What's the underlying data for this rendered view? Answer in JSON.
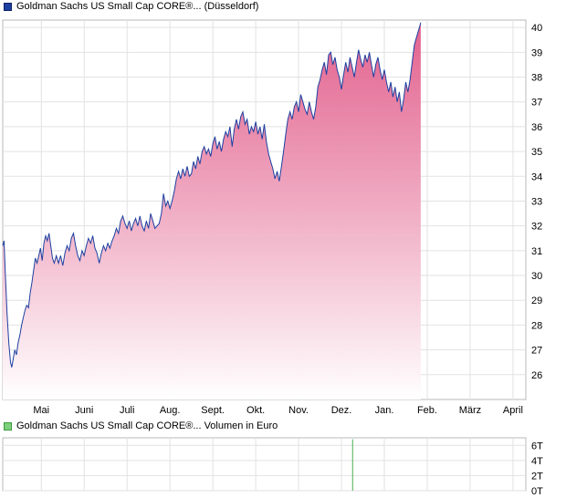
{
  "chart_data": [
    {
      "type": "area",
      "legend": "Goldman Sachs US Small Cap CORE®... (Düsseldorf)",
      "color": "#1d3fa0",
      "fill_top": "#e05585",
      "fill_bottom": "#ffffff",
      "x_tick_labels": [
        "Mai",
        "Juni",
        "Juli",
        "Aug.",
        "Sept.",
        "Okt.",
        "Nov.",
        "Dez.",
        "Jan.",
        "Feb.",
        "März",
        "April"
      ],
      "x_tick_months": [
        1,
        2,
        3,
        4,
        5,
        6,
        7,
        8,
        9,
        10,
        11,
        12
      ],
      "xlim": [
        0.1,
        12.3
      ],
      "ylim": [
        25.0,
        40.3
      ],
      "y_tick_labels": [
        "26",
        "27",
        "28",
        "29",
        "30",
        "31",
        "32",
        "33",
        "34",
        "35",
        "36",
        "37",
        "38",
        "39",
        "40"
      ],
      "y_ticks": [
        26,
        27,
        28,
        29,
        30,
        31,
        32,
        33,
        34,
        35,
        36,
        37,
        38,
        39,
        40
      ],
      "grid": true,
      "points": [
        [
          0.1,
          31.2
        ],
        [
          0.13,
          31.4
        ],
        [
          0.16,
          30.1
        ],
        [
          0.2,
          28.5
        ],
        [
          0.24,
          27.3
        ],
        [
          0.28,
          26.5
        ],
        [
          0.31,
          26.3
        ],
        [
          0.34,
          26.6
        ],
        [
          0.38,
          27.0
        ],
        [
          0.42,
          26.8
        ],
        [
          0.46,
          27.3
        ],
        [
          0.5,
          27.6
        ],
        [
          0.54,
          28.0
        ],
        [
          0.58,
          28.3
        ],
        [
          0.62,
          28.6
        ],
        [
          0.66,
          28.8
        ],
        [
          0.7,
          28.7
        ],
        [
          0.74,
          29.3
        ],
        [
          0.78,
          29.7
        ],
        [
          0.82,
          30.2
        ],
        [
          0.86,
          30.7
        ],
        [
          0.9,
          30.5
        ],
        [
          0.94,
          30.8
        ],
        [
          0.98,
          31.1
        ],
        [
          1.02,
          30.6
        ],
        [
          1.06,
          31.3
        ],
        [
          1.1,
          31.6
        ],
        [
          1.14,
          31.4
        ],
        [
          1.18,
          31.7
        ],
        [
          1.22,
          31.2
        ],
        [
          1.26,
          30.7
        ],
        [
          1.3,
          30.5
        ],
        [
          1.35,
          30.8
        ],
        [
          1.4,
          30.5
        ],
        [
          1.45,
          30.8
        ],
        [
          1.5,
          30.4
        ],
        [
          1.55,
          30.9
        ],
        [
          1.6,
          31.2
        ],
        [
          1.65,
          31.0
        ],
        [
          1.7,
          31.5
        ],
        [
          1.75,
          31.7
        ],
        [
          1.8,
          31.2
        ],
        [
          1.85,
          30.8
        ],
        [
          1.9,
          30.6
        ],
        [
          1.95,
          31.0
        ],
        [
          2.0,
          30.8
        ],
        [
          2.05,
          31.2
        ],
        [
          2.1,
          31.5
        ],
        [
          2.15,
          31.3
        ],
        [
          2.2,
          31.6
        ],
        [
          2.25,
          31.1
        ],
        [
          2.3,
          30.9
        ],
        [
          2.35,
          30.5
        ],
        [
          2.4,
          30.9
        ],
        [
          2.45,
          31.2
        ],
        [
          2.5,
          31.0
        ],
        [
          2.55,
          31.3
        ],
        [
          2.6,
          31.1
        ],
        [
          2.65,
          31.4
        ],
        [
          2.7,
          31.6
        ],
        [
          2.75,
          31.9
        ],
        [
          2.8,
          31.7
        ],
        [
          2.85,
          32.2
        ],
        [
          2.9,
          32.4
        ],
        [
          2.95,
          32.1
        ],
        [
          3.0,
          31.9
        ],
        [
          3.05,
          32.2
        ],
        [
          3.1,
          31.8
        ],
        [
          3.15,
          32.1
        ],
        [
          3.2,
          32.3
        ],
        [
          3.25,
          32.0
        ],
        [
          3.3,
          32.4
        ],
        [
          3.35,
          32.0
        ],
        [
          3.4,
          31.8
        ],
        [
          3.45,
          32.2
        ],
        [
          3.5,
          31.9
        ],
        [
          3.55,
          32.5
        ],
        [
          3.6,
          32.2
        ],
        [
          3.65,
          31.9
        ],
        [
          3.7,
          32.0
        ],
        [
          3.75,
          32.1
        ],
        [
          3.8,
          32.5
        ],
        [
          3.85,
          33.3
        ],
        [
          3.9,
          32.8
        ],
        [
          3.95,
          33.0
        ],
        [
          4.0,
          32.7
        ],
        [
          4.05,
          33.0
        ],
        [
          4.1,
          33.4
        ],
        [
          4.15,
          33.9
        ],
        [
          4.2,
          34.2
        ],
        [
          4.25,
          33.9
        ],
        [
          4.3,
          34.3
        ],
        [
          4.35,
          34.0
        ],
        [
          4.4,
          34.4
        ],
        [
          4.45,
          34.0
        ],
        [
          4.5,
          34.1
        ],
        [
          4.55,
          34.6
        ],
        [
          4.6,
          34.3
        ],
        [
          4.65,
          34.8
        ],
        [
          4.7,
          34.5
        ],
        [
          4.75,
          35.0
        ],
        [
          4.8,
          35.2
        ],
        [
          4.85,
          34.9
        ],
        [
          4.9,
          35.1
        ],
        [
          4.95,
          34.8
        ],
        [
          5.0,
          35.3
        ],
        [
          5.05,
          35.6
        ],
        [
          5.1,
          35.1
        ],
        [
          5.15,
          35.4
        ],
        [
          5.2,
          35.0
        ],
        [
          5.25,
          35.5
        ],
        [
          5.3,
          35.8
        ],
        [
          5.35,
          35.6
        ],
        [
          5.4,
          36.0
        ],
        [
          5.45,
          35.2
        ],
        [
          5.5,
          35.9
        ],
        [
          5.55,
          36.3
        ],
        [
          5.6,
          35.9
        ],
        [
          5.65,
          36.4
        ],
        [
          5.7,
          36.6
        ],
        [
          5.75,
          36.1
        ],
        [
          5.8,
          36.3
        ],
        [
          5.85,
          35.7
        ],
        [
          5.9,
          36.0
        ],
        [
          5.95,
          35.8
        ],
        [
          6.0,
          36.2
        ],
        [
          6.05,
          35.7
        ],
        [
          6.1,
          36.0
        ],
        [
          6.15,
          35.5
        ],
        [
          6.2,
          36.1
        ],
        [
          6.25,
          35.4
        ],
        [
          6.3,
          34.9
        ],
        [
          6.35,
          34.6
        ],
        [
          6.4,
          34.3
        ],
        [
          6.45,
          33.9
        ],
        [
          6.5,
          34.2
        ],
        [
          6.55,
          33.8
        ],
        [
          6.6,
          34.4
        ],
        [
          6.65,
          35.0
        ],
        [
          6.7,
          35.7
        ],
        [
          6.75,
          36.3
        ],
        [
          6.8,
          36.6
        ],
        [
          6.85,
          36.3
        ],
        [
          6.9,
          36.8
        ],
        [
          6.95,
          37.0
        ],
        [
          7.0,
          36.6
        ],
        [
          7.05,
          37.3
        ],
        [
          7.1,
          37.0
        ],
        [
          7.15,
          36.7
        ],
        [
          7.2,
          36.5
        ],
        [
          7.25,
          37.0
        ],
        [
          7.3,
          36.6
        ],
        [
          7.35,
          36.3
        ],
        [
          7.4,
          36.8
        ],
        [
          7.45,
          37.6
        ],
        [
          7.5,
          37.9
        ],
        [
          7.55,
          38.3
        ],
        [
          7.6,
          38.6
        ],
        [
          7.65,
          38.1
        ],
        [
          7.7,
          38.9
        ],
        [
          7.75,
          39.0
        ],
        [
          7.8,
          38.5
        ],
        [
          7.85,
          38.8
        ],
        [
          7.9,
          38.3
        ],
        [
          7.95,
          38.0
        ],
        [
          8.0,
          37.5
        ],
        [
          8.05,
          38.1
        ],
        [
          8.1,
          38.6
        ],
        [
          8.15,
          38.2
        ],
        [
          8.2,
          38.8
        ],
        [
          8.25,
          38.4
        ],
        [
          8.3,
          38.0
        ],
        [
          8.35,
          38.6
        ],
        [
          8.4,
          39.1
        ],
        [
          8.45,
          38.7
        ],
        [
          8.5,
          38.4
        ],
        [
          8.55,
          38.9
        ],
        [
          8.6,
          38.6
        ],
        [
          8.65,
          39.0
        ],
        [
          8.7,
          38.5
        ],
        [
          8.75,
          38.0
        ],
        [
          8.8,
          38.5
        ],
        [
          8.85,
          38.8
        ],
        [
          8.9,
          38.3
        ],
        [
          8.95,
          37.9
        ],
        [
          9.0,
          38.3
        ],
        [
          9.05,
          37.8
        ],
        [
          9.1,
          37.4
        ],
        [
          9.15,
          37.8
        ],
        [
          9.2,
          37.2
        ],
        [
          9.25,
          37.6
        ],
        [
          9.3,
          37.0
        ],
        [
          9.35,
          37.4
        ],
        [
          9.4,
          36.6
        ],
        [
          9.45,
          37.1
        ],
        [
          9.5,
          37.8
        ],
        [
          9.55,
          37.4
        ],
        [
          9.6,
          37.9
        ],
        [
          9.65,
          38.6
        ],
        [
          9.7,
          39.3
        ],
        [
          9.75,
          39.6
        ],
        [
          9.8,
          39.9
        ],
        [
          9.85,
          40.2
        ]
      ]
    },
    {
      "type": "bar",
      "legend": "Goldman Sachs US Small Cap CORE®... Volumen in Euro",
      "color": "#4caf50",
      "ylim": [
        0,
        7000
      ],
      "y_tick_labels": [
        "0T",
        "2T",
        "4T",
        "6T"
      ],
      "y_ticks": [
        0,
        2000,
        4000,
        6000
      ],
      "bars": [
        [
          8.26,
          6800
        ]
      ]
    }
  ]
}
